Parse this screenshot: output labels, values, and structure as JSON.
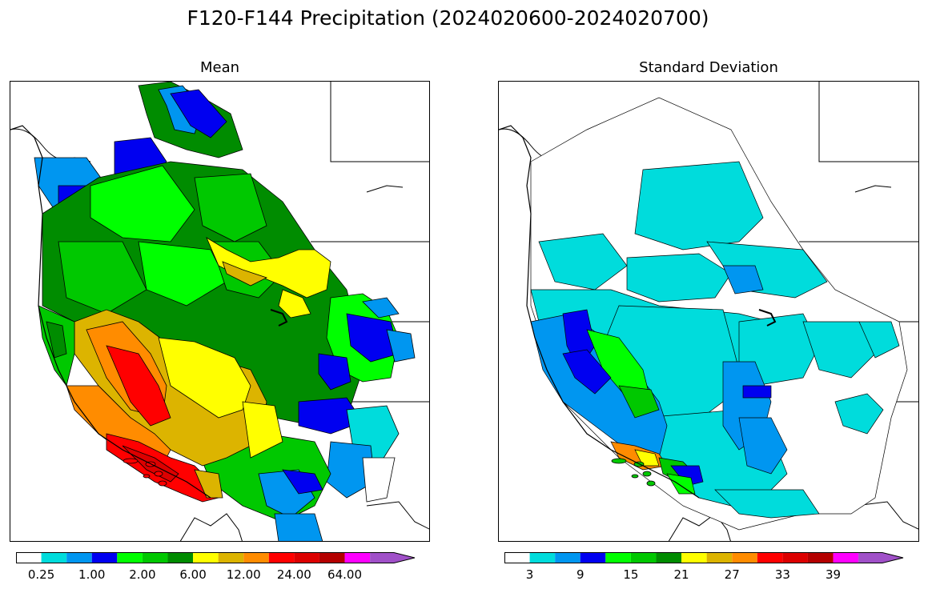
{
  "figure": {
    "title": "F120-F144 Precipitation (2024020600-2024020700)"
  },
  "panels": [
    {
      "id": "mean",
      "title": "Mean",
      "colorbar": {
        "colors": [
          "#ffffff",
          "#00dcdc",
          "#0096f0",
          "#0000f0",
          "#00ff00",
          "#00c800",
          "#008c00",
          "#ffff00",
          "#dcb400",
          "#ff8c00",
          "#ff0000",
          "#dc0000",
          "#b40000",
          "#ff00ff",
          "#a050c8"
        ],
        "tick_labels": [
          "0.25",
          "1.00",
          "2.00",
          "6.00",
          "12.00",
          "24.00",
          "64.00"
        ]
      }
    },
    {
      "id": "std",
      "title": "Standard Deviation",
      "colorbar": {
        "colors": [
          "#ffffff",
          "#00dcdc",
          "#0096f0",
          "#0000f0",
          "#00ff00",
          "#00c800",
          "#008c00",
          "#ffff00",
          "#dcb400",
          "#ff8c00",
          "#ff0000",
          "#dc0000",
          "#b40000",
          "#ff00ff",
          "#a050c8"
        ],
        "tick_labels": [
          "3",
          "9",
          "15",
          "21",
          "27",
          "33",
          "39"
        ]
      }
    }
  ]
}
